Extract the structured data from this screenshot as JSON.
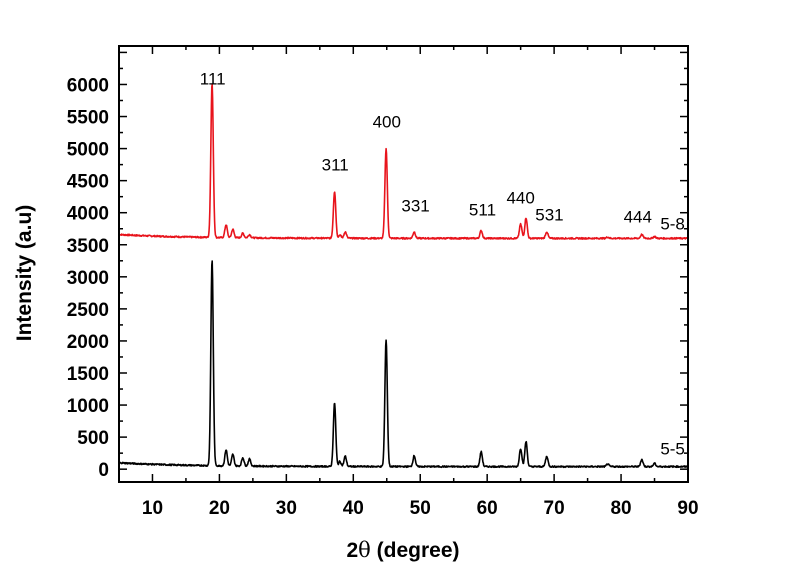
{
  "chart_data": {
    "type": "line",
    "title": "",
    "xlabel_prefix": "2",
    "xlabel_symbol": "θ",
    "xlabel_suffix": " (degree)",
    "ylabel": "Intensity (a.u)",
    "xlim": [
      5,
      90
    ],
    "ylim": [
      -200,
      6600
    ],
    "x_ticks": [
      10,
      20,
      30,
      40,
      50,
      60,
      70,
      80,
      90
    ],
    "y_ticks": [
      0,
      500,
      1000,
      1500,
      2000,
      2500,
      3000,
      3500,
      4000,
      4500,
      5000,
      5500,
      6000
    ],
    "series": [
      {
        "name": "5-8",
        "color": "#e8141c",
        "baseline": 3600,
        "peaks": [
          {
            "x": 18.9,
            "y": 6000
          },
          {
            "x": 21.0,
            "y": 3800
          },
          {
            "x": 22.0,
            "y": 3730
          },
          {
            "x": 23.5,
            "y": 3670
          },
          {
            "x": 24.5,
            "y": 3650
          },
          {
            "x": 37.2,
            "y": 4330
          },
          {
            "x": 38.0,
            "y": 3650
          },
          {
            "x": 38.8,
            "y": 3700
          },
          {
            "x": 44.9,
            "y": 5000
          },
          {
            "x": 49.1,
            "y": 3700
          },
          {
            "x": 59.1,
            "y": 3720
          },
          {
            "x": 65.0,
            "y": 3820
          },
          {
            "x": 65.8,
            "y": 3920
          },
          {
            "x": 68.9,
            "y": 3700
          },
          {
            "x": 78.0,
            "y": 3620
          },
          {
            "x": 83.1,
            "y": 3660
          },
          {
            "x": 85.0,
            "y": 3630
          }
        ]
      },
      {
        "name": "5-5",
        "color": "#000000",
        "baseline": 40,
        "peaks": [
          {
            "x": 18.9,
            "y": 3250
          },
          {
            "x": 21.0,
            "y": 290
          },
          {
            "x": 22.0,
            "y": 220
          },
          {
            "x": 23.5,
            "y": 170
          },
          {
            "x": 24.5,
            "y": 150
          },
          {
            "x": 37.2,
            "y": 1030
          },
          {
            "x": 38.0,
            "y": 120
          },
          {
            "x": 38.8,
            "y": 200
          },
          {
            "x": 44.9,
            "y": 2020
          },
          {
            "x": 49.1,
            "y": 210
          },
          {
            "x": 59.1,
            "y": 270
          },
          {
            "x": 65.0,
            "y": 320
          },
          {
            "x": 65.8,
            "y": 430
          },
          {
            "x": 68.9,
            "y": 200
          },
          {
            "x": 78.0,
            "y": 80
          },
          {
            "x": 83.1,
            "y": 150
          },
          {
            "x": 85.0,
            "y": 90
          }
        ]
      }
    ],
    "annotations": [
      {
        "text": "111",
        "x": 19.0,
        "y": 6000
      },
      {
        "text": "311",
        "x": 37.3,
        "y": 4660
      },
      {
        "text": "400",
        "x": 45.0,
        "y": 5330
      },
      {
        "text": "331",
        "x": 49.3,
        "y": 4020
      },
      {
        "text": "511",
        "x": 59.3,
        "y": 3960
      },
      {
        "text": "440",
        "x": 65.0,
        "y": 4140
      },
      {
        "text": "531",
        "x": 69.3,
        "y": 3880
      },
      {
        "text": "444",
        "x": 82.5,
        "y": 3850
      },
      {
        "text": "5-8",
        "x": 87.7,
        "y": 3740
      },
      {
        "text": "5-5",
        "x": 87.7,
        "y": 230
      }
    ]
  }
}
